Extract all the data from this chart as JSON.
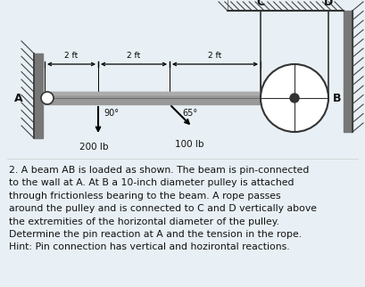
{
  "bg_color": "#e8f0f5",
  "diagram_bg": "#e8f0f5",
  "text_color": "#111111",
  "label_A": "A",
  "label_B": "B",
  "label_C": "C",
  "label_D": "D",
  "dim1": "2 ft",
  "dim2": "2 ft",
  "dim3": "2 ft",
  "angle1": "90°",
  "angle2": "65°",
  "load1": "200 lb",
  "load2": "100 lb",
  "title_text": "2. A beam AB is loaded as shown. The beam is pin-connected\nto the wall at A. At B a 10-inch diameter pulley is attached\nthrough frictionless bearing to the beam. A rope passes\naround the pulley and is connected to C and D vertically above\nthe extremities of the horizontal diameter of the pulley.\nDetermine the pin reaction at A and the tension in the rope.\nHint: Pin connection has vertical and hozirontal reactions."
}
